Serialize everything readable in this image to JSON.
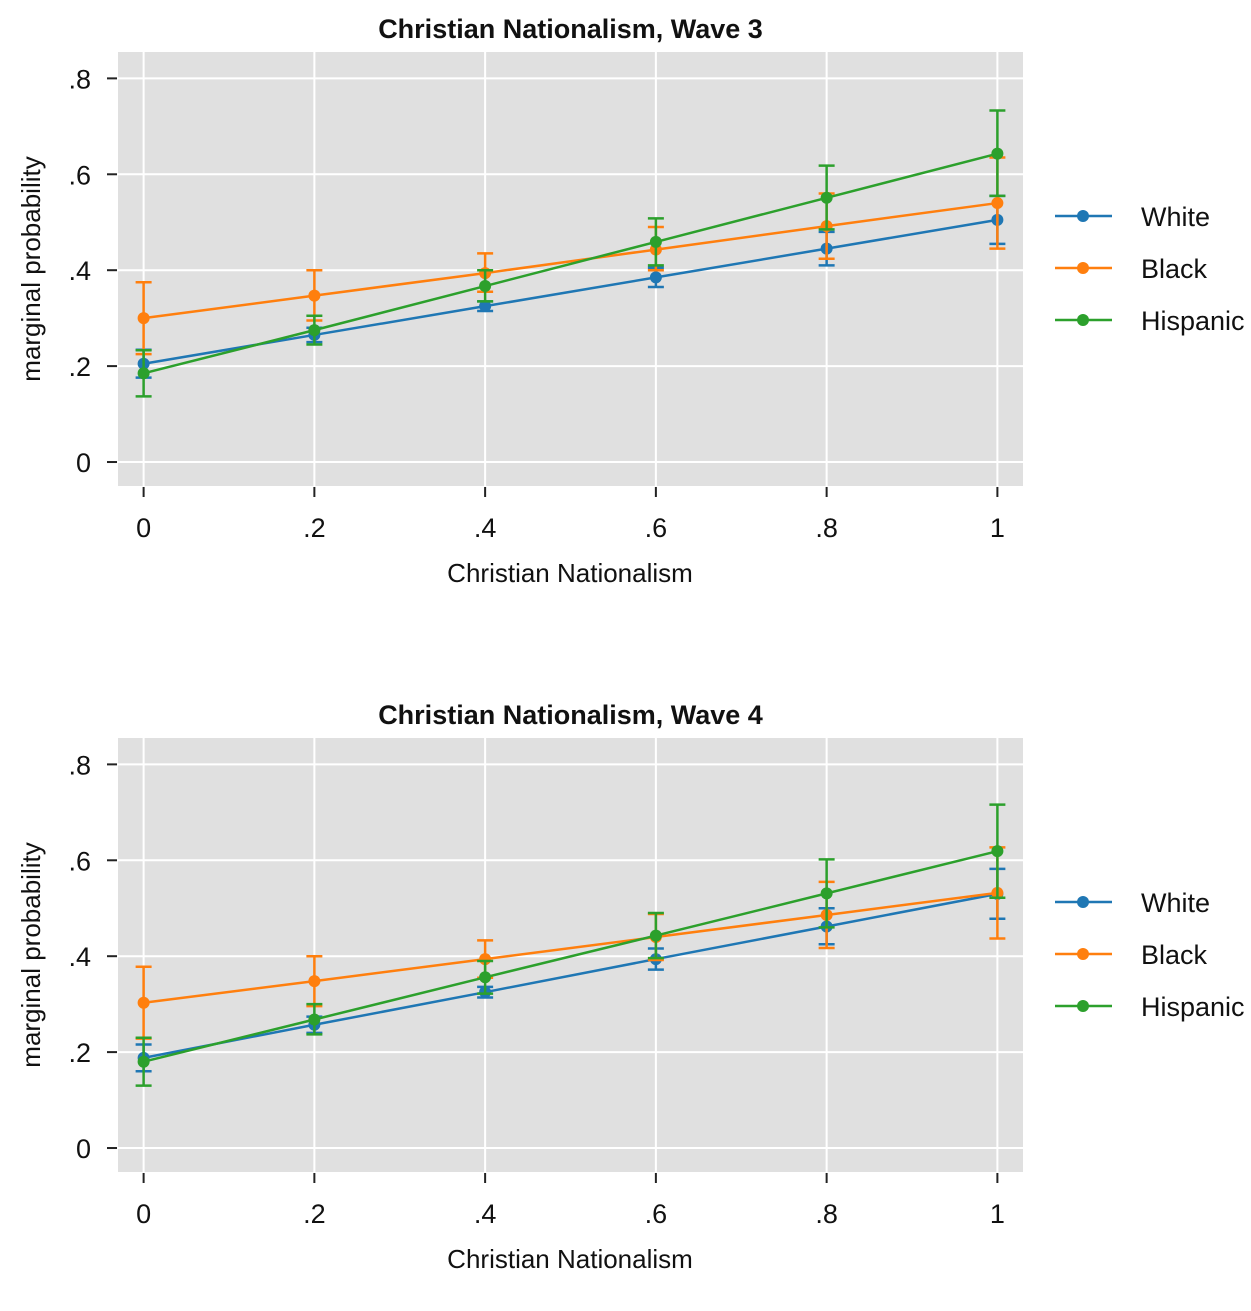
{
  "chart_data": [
    {
      "type": "line",
      "title": "Christian Nationalism, Wave 3",
      "xlabel": "Christian Nationalism",
      "ylabel": "marginal probability",
      "x": [
        0,
        0.2,
        0.4,
        0.6,
        0.8,
        1
      ],
      "xticks": [
        {
          "v": 0,
          "label": "0"
        },
        {
          "v": 0.2,
          "label": ".2"
        },
        {
          "v": 0.4,
          "label": ".4"
        },
        {
          "v": 0.6,
          "label": ".6"
        },
        {
          "v": 0.8,
          "label": ".8"
        },
        {
          "v": 1,
          "label": "1"
        }
      ],
      "yticks": [
        {
          "v": 0,
          "label": "0"
        },
        {
          "v": 0.2,
          "label": ".2"
        },
        {
          "v": 0.4,
          "label": ".4"
        },
        {
          "v": 0.6,
          "label": ".6"
        },
        {
          "v": 0.8,
          "label": ".8"
        }
      ],
      "xlim": [
        -0.03,
        1.03
      ],
      "ylim": [
        -0.05,
        0.855
      ],
      "grid": true,
      "legend_position": "right",
      "series": [
        {
          "name": "White",
          "color": "#1f77b4",
          "values": [
            0.205,
            0.265,
            0.325,
            0.385,
            0.445,
            0.505
          ],
          "lower": [
            0.176,
            0.25,
            0.315,
            0.365,
            0.41,
            0.455
          ],
          "upper": [
            0.234,
            0.28,
            0.335,
            0.405,
            0.48,
            0.555
          ]
        },
        {
          "name": "Black",
          "color": "#ff7f0e",
          "values": [
            0.3,
            0.347,
            0.394,
            0.443,
            0.492,
            0.54
          ],
          "lower": [
            0.225,
            0.295,
            0.355,
            0.4,
            0.424,
            0.445
          ],
          "upper": [
            0.375,
            0.4,
            0.435,
            0.49,
            0.56,
            0.635
          ]
        },
        {
          "name": "Hispanic",
          "color": "#2ca02c",
          "values": [
            0.185,
            0.275,
            0.367,
            0.459,
            0.551,
            0.643
          ],
          "lower": [
            0.137,
            0.245,
            0.335,
            0.41,
            0.485,
            0.555
          ],
          "upper": [
            0.233,
            0.305,
            0.4,
            0.508,
            0.618,
            0.733
          ]
        }
      ]
    },
    {
      "type": "line",
      "title": "Christian Nationalism, Wave 4",
      "xlabel": "Christian Nationalism",
      "ylabel": "marginal probability",
      "x": [
        0,
        0.2,
        0.4,
        0.6,
        0.8,
        1
      ],
      "xticks": [
        {
          "v": 0,
          "label": "0"
        },
        {
          "v": 0.2,
          "label": ".2"
        },
        {
          "v": 0.4,
          "label": ".4"
        },
        {
          "v": 0.6,
          "label": ".6"
        },
        {
          "v": 0.8,
          "label": ".8"
        },
        {
          "v": 1,
          "label": "1"
        }
      ],
      "yticks": [
        {
          "v": 0,
          "label": "0"
        },
        {
          "v": 0.2,
          "label": ".2"
        },
        {
          "v": 0.4,
          "label": ".4"
        },
        {
          "v": 0.6,
          "label": ".6"
        },
        {
          "v": 0.8,
          "label": ".8"
        }
      ],
      "xlim": [
        -0.03,
        1.03
      ],
      "ylim": [
        -0.05,
        0.855
      ],
      "grid": true,
      "legend_position": "right",
      "series": [
        {
          "name": "White",
          "color": "#1f77b4",
          "values": [
            0.188,
            0.257,
            0.325,
            0.394,
            0.462,
            0.53
          ],
          "lower": [
            0.16,
            0.24,
            0.314,
            0.372,
            0.425,
            0.478
          ],
          "upper": [
            0.216,
            0.274,
            0.336,
            0.416,
            0.5,
            0.582
          ]
        },
        {
          "name": "Black",
          "color": "#ff7f0e",
          "values": [
            0.303,
            0.348,
            0.394,
            0.44,
            0.486,
            0.532
          ],
          "lower": [
            0.228,
            0.296,
            0.355,
            0.392,
            0.417,
            0.437
          ],
          "upper": [
            0.378,
            0.4,
            0.433,
            0.488,
            0.555,
            0.627
          ]
        },
        {
          "name": "Hispanic",
          "color": "#2ca02c",
          "values": [
            0.18,
            0.268,
            0.356,
            0.443,
            0.531,
            0.619
          ],
          "lower": [
            0.13,
            0.237,
            0.322,
            0.396,
            0.46,
            0.522
          ],
          "upper": [
            0.23,
            0.3,
            0.39,
            0.49,
            0.602,
            0.716
          ]
        }
      ]
    }
  ]
}
